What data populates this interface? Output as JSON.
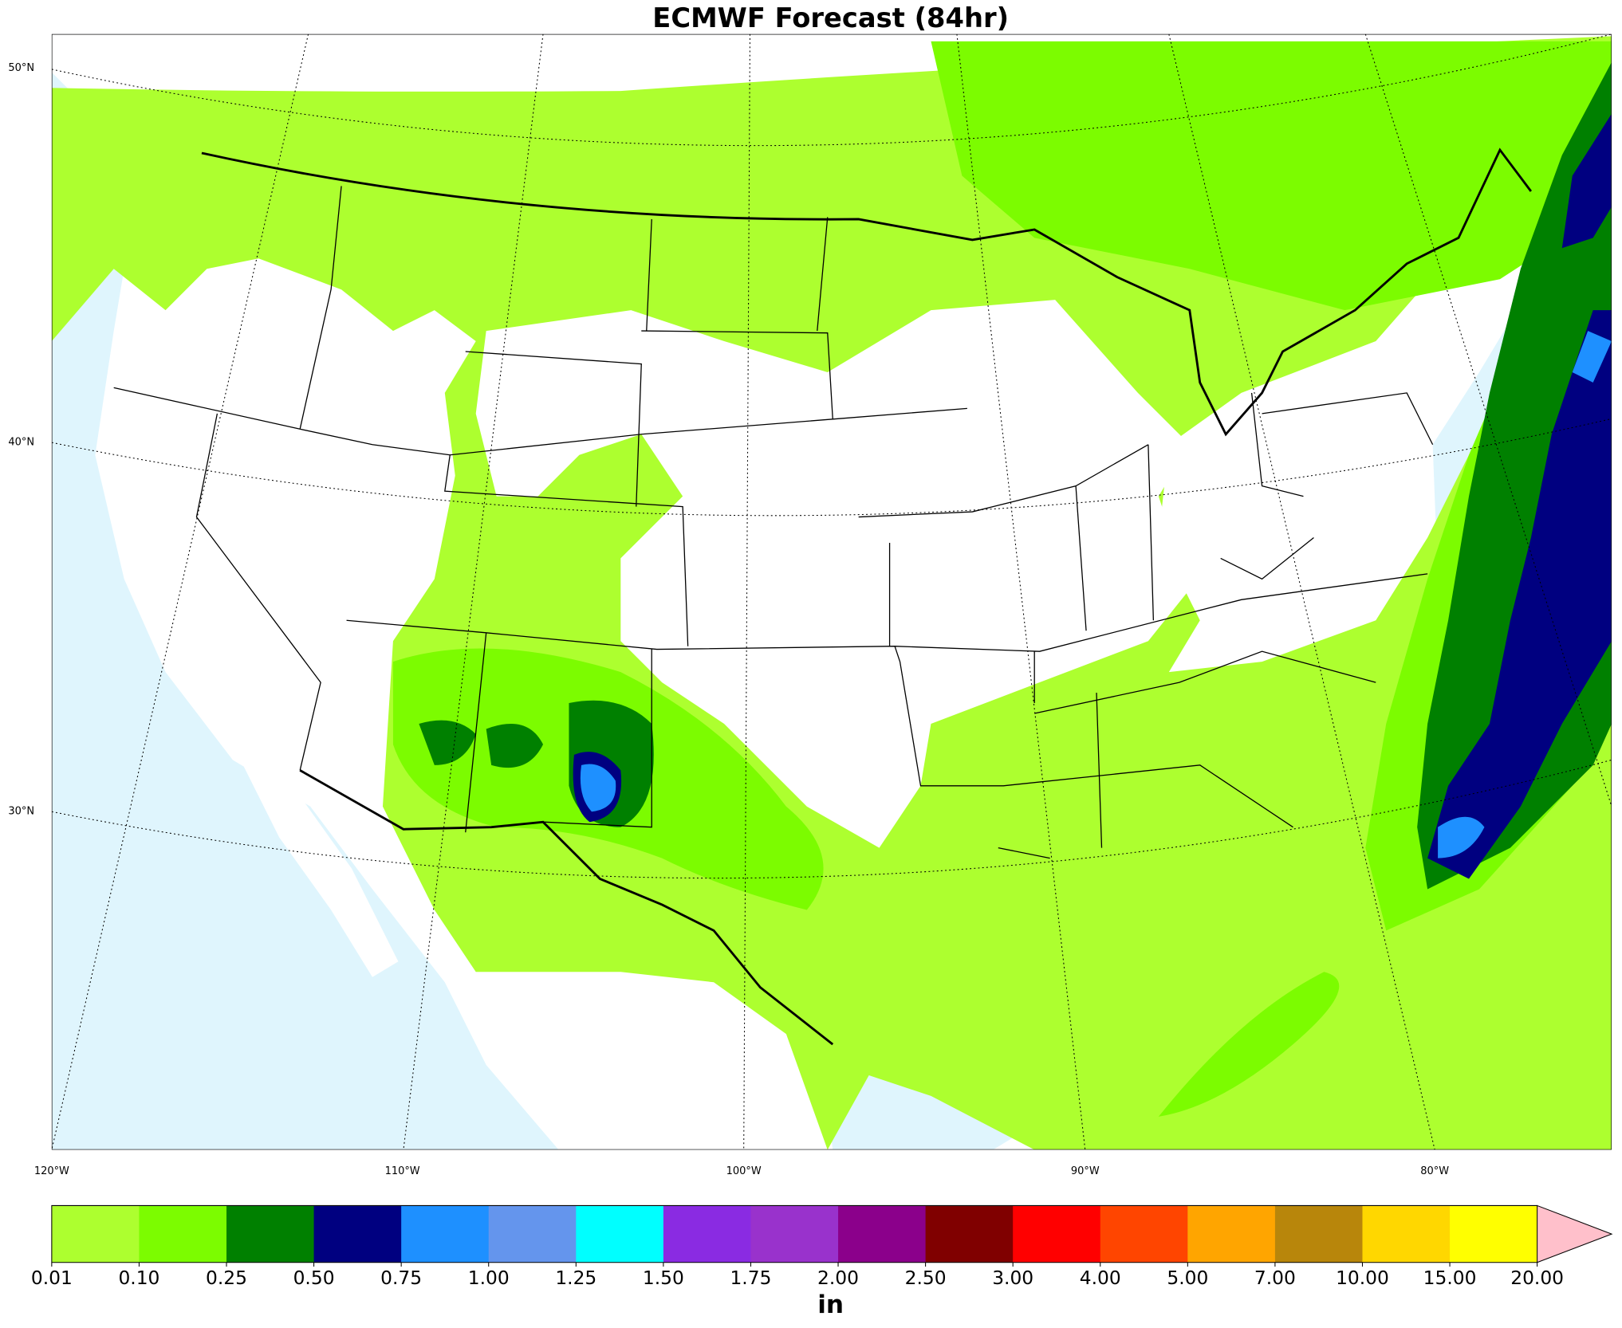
{
  "title": "ECMWF Forecast (84hr)",
  "map": {
    "lat_labels": [
      "50°N",
      "40°N",
      "30°N"
    ],
    "lon_labels": [
      "120°W",
      "110°W",
      "100°W",
      "90°W",
      "80°W"
    ]
  },
  "colorbar": {
    "labels": [
      "0.01",
      "0.10",
      "0.25",
      "0.50",
      "0.75",
      "1.00",
      "1.25",
      "1.50",
      "1.75",
      "2.00",
      "2.50",
      "3.00",
      "4.00",
      "5.00",
      "7.00",
      "10.00",
      "15.00",
      "20.00"
    ],
    "colors": [
      "#adff2f",
      "#7cfc00",
      "#008000",
      "#000080",
      "#1e90ff",
      "#6495ed",
      "#00ffff",
      "#8a2be2",
      "#9932cc",
      "#8b008b",
      "#800000",
      "#ff0000",
      "#ff4500",
      "#ffa500",
      "#b8860b",
      "#ffd700",
      "#ffff00"
    ],
    "extend_color": "#ffc0cb",
    "unit": "in"
  }
}
